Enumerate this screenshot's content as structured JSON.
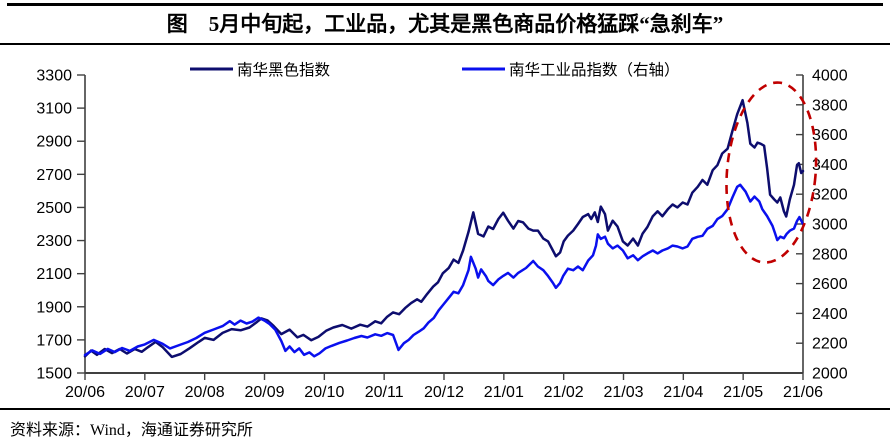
{
  "header": {
    "title": "图　5月中旬起，工业品，尤其是黑色商品价格猛踩“急刹车”"
  },
  "footer": {
    "source_label": "资料来源：Wind，海通证券研究所"
  },
  "chart_data": {
    "type": "line",
    "x_axis": {
      "labels": [
        "20/06",
        "20/07",
        "20/08",
        "20/09",
        "20/10",
        "20/11",
        "20/12",
        "21/01",
        "21/02",
        "21/03",
        "21/04",
        "21/05",
        "21/06"
      ],
      "months_span": 12
    },
    "y_left": {
      "min": 1500,
      "max": 3300,
      "step": 200,
      "ticks": [
        3300,
        3100,
        2900,
        2700,
        2500,
        2300,
        2100,
        1900,
        1700,
        1500
      ]
    },
    "y_right": {
      "min": 2000,
      "max": 4000,
      "step": 200,
      "ticks": [
        4000,
        3800,
        3600,
        3400,
        3200,
        3000,
        2800,
        2600,
        2400,
        2200,
        2000
      ]
    },
    "axis_color": "#404040",
    "legend_position": "top",
    "grid": false,
    "series": [
      {
        "name": "南华黑色指数",
        "axis": "left",
        "color": "#0d0d6e",
        "points": [
          [
            0,
            1600
          ],
          [
            0.1,
            1635
          ],
          [
            0.2,
            1610
          ],
          [
            0.33,
            1645
          ],
          [
            0.45,
            1620
          ],
          [
            0.58,
            1645
          ],
          [
            0.7,
            1618
          ],
          [
            0.83,
            1645
          ],
          [
            0.95,
            1628
          ],
          [
            1.05,
            1655
          ],
          [
            1.18,
            1688
          ],
          [
            1.3,
            1655
          ],
          [
            1.45,
            1597
          ],
          [
            1.6,
            1615
          ],
          [
            1.75,
            1650
          ],
          [
            1.9,
            1688
          ],
          [
            2,
            1712
          ],
          [
            2.15,
            1700
          ],
          [
            2.3,
            1742
          ],
          [
            2.45,
            1765
          ],
          [
            2.6,
            1758
          ],
          [
            2.75,
            1775
          ],
          [
            2.88,
            1810
          ],
          [
            2.95,
            1830
          ],
          [
            3.05,
            1818
          ],
          [
            3.15,
            1785
          ],
          [
            3.28,
            1735
          ],
          [
            3.42,
            1762
          ],
          [
            3.55,
            1715
          ],
          [
            3.65,
            1730
          ],
          [
            3.78,
            1698
          ],
          [
            3.9,
            1718
          ],
          [
            4.03,
            1755
          ],
          [
            4.15,
            1775
          ],
          [
            4.3,
            1790
          ],
          [
            4.45,
            1768
          ],
          [
            4.6,
            1792
          ],
          [
            4.72,
            1780
          ],
          [
            4.85,
            1812
          ],
          [
            4.95,
            1800
          ],
          [
            5.05,
            1840
          ],
          [
            5.15,
            1866
          ],
          [
            5.25,
            1855
          ],
          [
            5.35,
            1892
          ],
          [
            5.45,
            1922
          ],
          [
            5.55,
            1945
          ],
          [
            5.62,
            1930
          ],
          [
            5.72,
            1978
          ],
          [
            5.82,
            2022
          ],
          [
            5.9,
            2048
          ],
          [
            5.98,
            2102
          ],
          [
            6.08,
            2135
          ],
          [
            6.16,
            2185
          ],
          [
            6.24,
            2165
          ],
          [
            6.32,
            2240
          ],
          [
            6.41,
            2352
          ],
          [
            6.49,
            2470
          ],
          [
            6.57,
            2340
          ],
          [
            6.66,
            2325
          ],
          [
            6.74,
            2385
          ],
          [
            6.82,
            2370
          ],
          [
            6.91,
            2430
          ],
          [
            6.99,
            2468
          ],
          [
            7.07,
            2420
          ],
          [
            7.16,
            2372
          ],
          [
            7.24,
            2418
          ],
          [
            7.32,
            2410
          ],
          [
            7.41,
            2372
          ],
          [
            7.49,
            2360
          ],
          [
            7.57,
            2360
          ],
          [
            7.66,
            2312
          ],
          [
            7.74,
            2295
          ],
          [
            7.82,
            2240
          ],
          [
            7.87,
            2205
          ],
          [
            7.94,
            2228
          ],
          [
            8,
            2295
          ],
          [
            8.07,
            2330
          ],
          [
            8.16,
            2360
          ],
          [
            8.24,
            2400
          ],
          [
            8.32,
            2442
          ],
          [
            8.41,
            2460
          ],
          [
            8.46,
            2430
          ],
          [
            8.52,
            2470
          ],
          [
            8.57,
            2412
          ],
          [
            8.62,
            2505
          ],
          [
            8.69,
            2460
          ],
          [
            8.74,
            2360
          ],
          [
            8.82,
            2420
          ],
          [
            8.9,
            2385
          ],
          [
            8.99,
            2295
          ],
          [
            9.07,
            2270
          ],
          [
            9.16,
            2312
          ],
          [
            9.24,
            2270
          ],
          [
            9.32,
            2342
          ],
          [
            9.4,
            2382
          ],
          [
            9.49,
            2447
          ],
          [
            9.57,
            2477
          ],
          [
            9.65,
            2447
          ],
          [
            9.74,
            2489
          ],
          [
            9.82,
            2518
          ],
          [
            9.9,
            2500
          ],
          [
            9.99,
            2530
          ],
          [
            10.07,
            2518
          ],
          [
            10.15,
            2589
          ],
          [
            10.24,
            2625
          ],
          [
            10.32,
            2666
          ],
          [
            10.4,
            2637
          ],
          [
            10.49,
            2725
          ],
          [
            10.57,
            2755
          ],
          [
            10.65,
            2826
          ],
          [
            10.74,
            2855
          ],
          [
            10.82,
            2962
          ],
          [
            10.9,
            3063
          ],
          [
            10.99,
            3148
          ],
          [
            11.07,
            3010
          ],
          [
            11.12,
            2885
          ],
          [
            11.19,
            2862
          ],
          [
            11.24,
            2891
          ],
          [
            11.29,
            2885
          ],
          [
            11.35,
            2873
          ],
          [
            11.4,
            2737
          ],
          [
            11.45,
            2577
          ],
          [
            11.52,
            2548
          ],
          [
            11.57,
            2530
          ],
          [
            11.62,
            2560
          ],
          [
            11.68,
            2477
          ],
          [
            11.72,
            2445
          ],
          [
            11.78,
            2548
          ],
          [
            11.85,
            2637
          ],
          [
            11.9,
            2755
          ],
          [
            11.93,
            2767
          ],
          [
            11.97,
            2708
          ],
          [
            12,
            2720
          ]
        ]
      },
      {
        "name": "南华工业品指数（右轴）",
        "axis": "right",
        "color": "#0a10ee",
        "points": [
          [
            0,
            2120
          ],
          [
            0.12,
            2152
          ],
          [
            0.25,
            2128
          ],
          [
            0.38,
            2162
          ],
          [
            0.5,
            2140
          ],
          [
            0.62,
            2168
          ],
          [
            0.75,
            2148
          ],
          [
            0.88,
            2178
          ],
          [
            1,
            2192
          ],
          [
            1.15,
            2222
          ],
          [
            1.3,
            2195
          ],
          [
            1.42,
            2165
          ],
          [
            1.58,
            2188
          ],
          [
            1.72,
            2208
          ],
          [
            1.86,
            2235
          ],
          [
            2,
            2270
          ],
          [
            2.15,
            2292
          ],
          [
            2.3,
            2315
          ],
          [
            2.42,
            2348
          ],
          [
            2.5,
            2325
          ],
          [
            2.6,
            2352
          ],
          [
            2.7,
            2332
          ],
          [
            2.8,
            2345
          ],
          [
            2.9,
            2372
          ],
          [
            3,
            2352
          ],
          [
            3.08,
            2330
          ],
          [
            3.18,
            2290
          ],
          [
            3.28,
            2215
          ],
          [
            3.35,
            2148
          ],
          [
            3.42,
            2178
          ],
          [
            3.5,
            2140
          ],
          [
            3.58,
            2165
          ],
          [
            3.66,
            2122
          ],
          [
            3.75,
            2138
          ],
          [
            3.83,
            2112
          ],
          [
            3.92,
            2132
          ],
          [
            4.02,
            2165
          ],
          [
            4.12,
            2182
          ],
          [
            4.25,
            2202
          ],
          [
            4.38,
            2218
          ],
          [
            4.5,
            2235
          ],
          [
            4.62,
            2248
          ],
          [
            4.72,
            2238
          ],
          [
            4.85,
            2260
          ],
          [
            4.95,
            2250
          ],
          [
            5.05,
            2268
          ],
          [
            5.15,
            2255
          ],
          [
            5.24,
            2155
          ],
          [
            5.33,
            2200
          ],
          [
            5.41,
            2222
          ],
          [
            5.49,
            2255
          ],
          [
            5.58,
            2278
          ],
          [
            5.66,
            2300
          ],
          [
            5.74,
            2338
          ],
          [
            5.83,
            2370
          ],
          [
            5.91,
            2420
          ],
          [
            5.99,
            2460
          ],
          [
            6.08,
            2505
          ],
          [
            6.16,
            2545
          ],
          [
            6.24,
            2535
          ],
          [
            6.32,
            2590
          ],
          [
            6.41,
            2690
          ],
          [
            6.45,
            2780
          ],
          [
            6.53,
            2700
          ],
          [
            6.57,
            2640
          ],
          [
            6.62,
            2695
          ],
          [
            6.7,
            2650
          ],
          [
            6.74,
            2618
          ],
          [
            6.82,
            2590
          ],
          [
            6.91,
            2628
          ],
          [
            6.99,
            2652
          ],
          [
            7.07,
            2672
          ],
          [
            7.16,
            2640
          ],
          [
            7.24,
            2672
          ],
          [
            7.37,
            2705
          ],
          [
            7.49,
            2752
          ],
          [
            7.57,
            2715
          ],
          [
            7.66,
            2690
          ],
          [
            7.74,
            2650
          ],
          [
            7.82,
            2605
          ],
          [
            7.87,
            2572
          ],
          [
            7.94,
            2605
          ],
          [
            7.99,
            2650
          ],
          [
            8.07,
            2700
          ],
          [
            8.16,
            2690
          ],
          [
            8.24,
            2715
          ],
          [
            8.32,
            2690
          ],
          [
            8.41,
            2755
          ],
          [
            8.49,
            2790
          ],
          [
            8.54,
            2855
          ],
          [
            8.57,
            2930
          ],
          [
            8.62,
            2900
          ],
          [
            8.69,
            2915
          ],
          [
            8.74,
            2868
          ],
          [
            8.82,
            2836
          ],
          [
            8.9,
            2855
          ],
          [
            8.99,
            2822
          ],
          [
            9.07,
            2770
          ],
          [
            9.16,
            2790
          ],
          [
            9.24,
            2757
          ],
          [
            9.32,
            2783
          ],
          [
            9.4,
            2803
          ],
          [
            9.49,
            2822
          ],
          [
            9.57,
            2803
          ],
          [
            9.65,
            2822
          ],
          [
            9.74,
            2836
          ],
          [
            9.82,
            2855
          ],
          [
            9.9,
            2849
          ],
          [
            9.99,
            2836
          ],
          [
            10.07,
            2849
          ],
          [
            10.15,
            2901
          ],
          [
            10.24,
            2914
          ],
          [
            10.32,
            2921
          ],
          [
            10.4,
            2967
          ],
          [
            10.49,
            2987
          ],
          [
            10.57,
            3033
          ],
          [
            10.65,
            3053
          ],
          [
            10.74,
            3099
          ],
          [
            10.82,
            3178
          ],
          [
            10.9,
            3250
          ],
          [
            10.95,
            3263
          ],
          [
            11.04,
            3217
          ],
          [
            11.12,
            3151
          ],
          [
            11.19,
            3184
          ],
          [
            11.27,
            3151
          ],
          [
            11.32,
            3099
          ],
          [
            11.4,
            3053
          ],
          [
            11.49,
            2987
          ],
          [
            11.53,
            2940
          ],
          [
            11.57,
            2892
          ],
          [
            11.62,
            2915
          ],
          [
            11.68,
            2905
          ],
          [
            11.73,
            2935
          ],
          [
            11.78,
            2955
          ],
          [
            11.85,
            2970
          ],
          [
            11.9,
            3020
          ],
          [
            11.94,
            3046
          ],
          [
            12,
            3000
          ]
        ]
      }
    ],
    "annotation": {
      "shape": "dashed-ellipse",
      "color": "#c00000",
      "center_month": 11.47,
      "center_value_left": 2711,
      "radius_months": 0.74,
      "radius_value_left": 545,
      "rotation_deg": 5
    }
  }
}
